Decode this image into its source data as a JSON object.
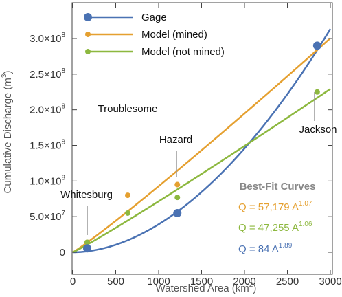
{
  "chart_data": {
    "type": "scatter",
    "xlabel": "Watershed Area (km",
    "xlabel_sup": "2",
    "xlabel_end": ")",
    "ylabel": "Cumulative Discharge (m",
    "ylabel_sup": "3",
    "ylabel_end": ")",
    "xlim": [
      0,
      3000
    ],
    "ylim": [
      0,
      325000000.0
    ],
    "xticks": [
      0,
      500,
      1000,
      1500,
      2000,
      2500,
      3000
    ],
    "yticks": [
      {
        "value": 0,
        "label": "0",
        "exp": ""
      },
      {
        "value": 50000000.0,
        "label": "5.0×10",
        "exp": "7"
      },
      {
        "value": 100000000.0,
        "label": "1.0×10",
        "exp": "8"
      },
      {
        "value": 150000000.0,
        "label": "1.5×10",
        "exp": "8"
      },
      {
        "value": 200000000.0,
        "label": "2.0×10",
        "exp": "8"
      },
      {
        "value": 250000000.0,
        "label": "2.5×10",
        "exp": "8"
      },
      {
        "value": 300000000.0,
        "label": "3.0×10",
        "exp": "8"
      }
    ],
    "grid": false,
    "legend_position": "top-left",
    "series": [
      {
        "name": "Gage",
        "color": "#4a72b3",
        "points": [
          [
            168,
            5500000.0
          ],
          [
            1218,
            55000000.0
          ],
          [
            2847,
            290000000.0
          ]
        ],
        "fit": {
          "a": 84,
          "b": 1.89
        },
        "marker_size": "large"
      },
      {
        "name": "Model (mined)",
        "color": "#e5a030",
        "points": [
          [
            168,
            14000000.0
          ],
          [
            640,
            80000000.0
          ],
          [
            1218,
            95000000.0
          ],
          [
            2847,
            290000000.0
          ]
        ],
        "fit": {
          "a": 57179,
          "b": 1.07
        },
        "marker_size": "small"
      },
      {
        "name": "Model (not mined)",
        "color": "#8db83f",
        "points": [
          [
            168,
            14000000.0
          ],
          [
            640,
            55000000.0
          ],
          [
            1218,
            77000000.0
          ],
          [
            2847,
            225000000.0
          ]
        ],
        "fit": {
          "a": 47255,
          "b": 1.06
        },
        "marker_size": "small"
      }
    ],
    "annotations": [
      {
        "text": "Whitesburg",
        "x": 168
      },
      {
        "text": "Troublesome",
        "x": 640
      },
      {
        "text": "Hazard",
        "x": 1218
      },
      {
        "text": "Jackson",
        "x": 2847
      }
    ],
    "equations_title": "Best-Fit Curves",
    "equations": [
      {
        "text": "Q = 57,179 A",
        "exp": "1.07",
        "color": "#e5a030"
      },
      {
        "text": "Q = 47,255 A",
        "exp": "1.06",
        "color": "#8db83f"
      },
      {
        "text": "Q = 84 A",
        "exp": "1.89",
        "color": "#4a72b3"
      }
    ]
  }
}
